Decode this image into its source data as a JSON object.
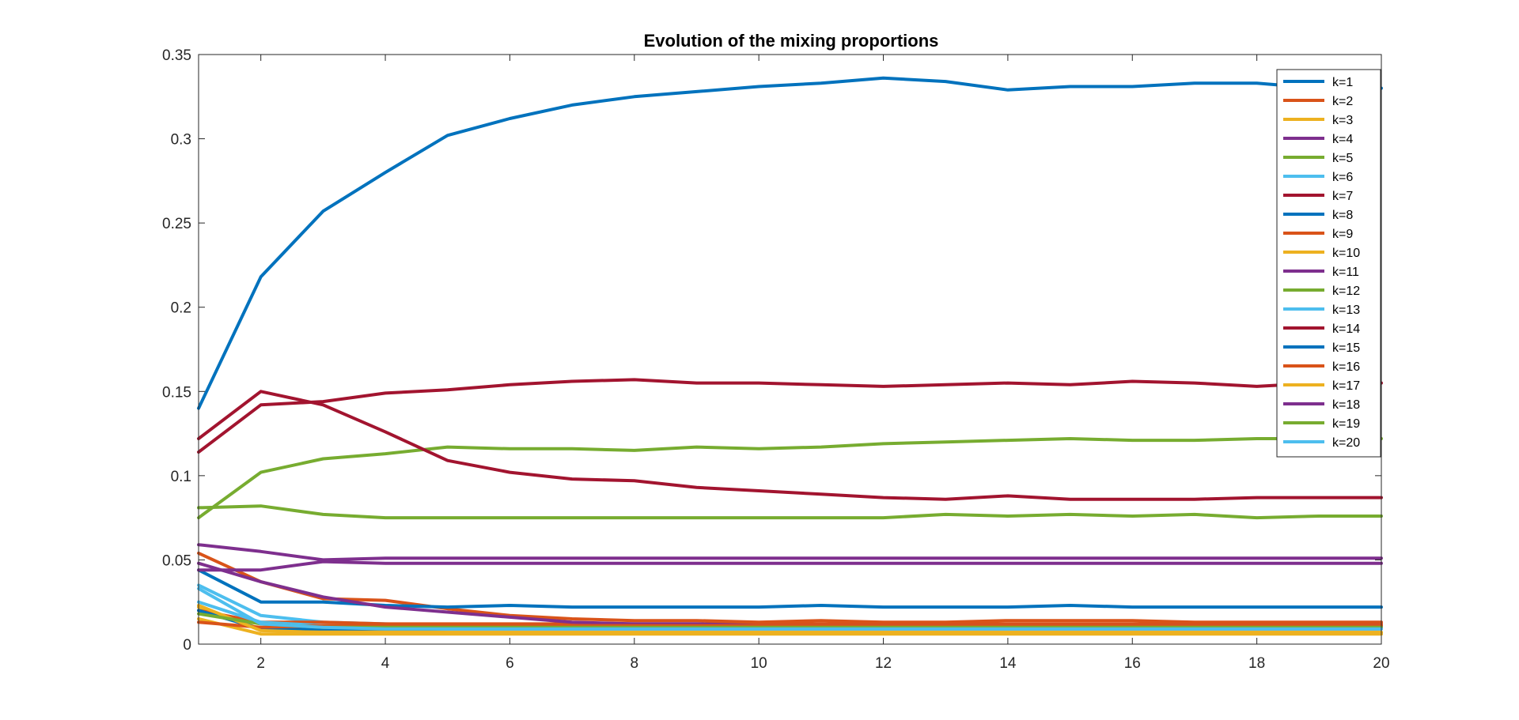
{
  "chart_data": {
    "type": "line",
    "title": "Evolution of the mixing proportions",
    "xlabel": "",
    "ylabel": "",
    "xlim": [
      1,
      20
    ],
    "ylim": [
      0,
      0.35
    ],
    "x_ticks": [
      2,
      4,
      6,
      8,
      10,
      12,
      14,
      16,
      18,
      20
    ],
    "y_ticks": [
      0,
      0.05,
      0.1,
      0.15,
      0.2,
      0.25,
      0.3,
      0.35
    ],
    "y_tick_labels": [
      "0",
      "0.05",
      "0.1",
      "0.15",
      "0.2",
      "0.25",
      "0.3",
      "0.35"
    ],
    "grid": false,
    "legend_position": "top-right",
    "x": [
      1,
      2,
      3,
      4,
      5,
      6,
      7,
      8,
      9,
      10,
      11,
      12,
      13,
      14,
      15,
      16,
      17,
      18,
      19,
      20
    ],
    "series": [
      {
        "name": "k=1",
        "color": "#0072BD",
        "values": [
          0.14,
          0.218,
          0.257,
          0.28,
          0.302,
          0.312,
          0.32,
          0.325,
          0.328,
          0.331,
          0.333,
          0.336,
          0.334,
          0.329,
          0.331,
          0.331,
          0.333,
          0.333,
          0.33,
          0.33
        ]
      },
      {
        "name": "k=2",
        "color": "#D95319",
        "values": [
          0.054,
          0.037,
          0.027,
          0.026,
          0.021,
          0.017,
          0.015,
          0.014,
          0.014,
          0.013,
          0.014,
          0.013,
          0.013,
          0.014,
          0.014,
          0.014,
          0.013,
          0.013,
          0.013,
          0.013
        ]
      },
      {
        "name": "k=3",
        "color": "#EDB120",
        "values": [
          0.022,
          0.009,
          0.008,
          0.008,
          0.007,
          0.007,
          0.007,
          0.007,
          0.007,
          0.007,
          0.007,
          0.007,
          0.007,
          0.007,
          0.007,
          0.007,
          0.007,
          0.007,
          0.007,
          0.007
        ]
      },
      {
        "name": "k=4",
        "color": "#7E2F8E",
        "values": [
          0.059,
          0.055,
          0.05,
          0.051,
          0.051,
          0.051,
          0.051,
          0.051,
          0.051,
          0.051,
          0.051,
          0.051,
          0.051,
          0.051,
          0.051,
          0.051,
          0.051,
          0.051,
          0.051,
          0.051
        ]
      },
      {
        "name": "k=5",
        "color": "#77AC30",
        "values": [
          0.081,
          0.082,
          0.077,
          0.075,
          0.075,
          0.075,
          0.075,
          0.075,
          0.075,
          0.075,
          0.075,
          0.075,
          0.077,
          0.076,
          0.077,
          0.076,
          0.077,
          0.075,
          0.076,
          0.076
        ]
      },
      {
        "name": "k=6",
        "color": "#4DBEEE",
        "values": [
          0.035,
          0.017,
          0.013,
          0.012,
          0.011,
          0.011,
          0.011,
          0.011,
          0.011,
          0.011,
          0.011,
          0.011,
          0.011,
          0.011,
          0.011,
          0.011,
          0.011,
          0.011,
          0.011,
          0.011
        ]
      },
      {
        "name": "k=7",
        "color": "#A2142F",
        "values": [
          0.114,
          0.142,
          0.144,
          0.149,
          0.151,
          0.154,
          0.156,
          0.157,
          0.155,
          0.155,
          0.154,
          0.153,
          0.154,
          0.155,
          0.154,
          0.156,
          0.155,
          0.153,
          0.155,
          0.155
        ]
      },
      {
        "name": "k=8",
        "color": "#0072BD",
        "values": [
          0.044,
          0.025,
          0.025,
          0.023,
          0.022,
          0.023,
          0.022,
          0.022,
          0.022,
          0.022,
          0.023,
          0.022,
          0.022,
          0.022,
          0.023,
          0.022,
          0.022,
          0.022,
          0.022,
          0.022
        ]
      },
      {
        "name": "k=9",
        "color": "#D95319",
        "values": [
          0.02,
          0.013,
          0.013,
          0.012,
          0.012,
          0.012,
          0.012,
          0.012,
          0.012,
          0.012,
          0.012,
          0.012,
          0.012,
          0.012,
          0.012,
          0.012,
          0.012,
          0.012,
          0.012,
          0.012
        ]
      },
      {
        "name": "k=10",
        "color": "#EDB120",
        "values": [
          0.015,
          0.006,
          0.006,
          0.006,
          0.006,
          0.006,
          0.006,
          0.006,
          0.006,
          0.006,
          0.006,
          0.006,
          0.006,
          0.006,
          0.006,
          0.006,
          0.006,
          0.006,
          0.006,
          0.006
        ]
      },
      {
        "name": "k=11",
        "color": "#7E2F8E",
        "values": [
          0.048,
          0.037,
          0.028,
          0.022,
          0.019,
          0.016,
          0.013,
          0.012,
          0.012,
          0.011,
          0.011,
          0.011,
          0.011,
          0.011,
          0.011,
          0.011,
          0.011,
          0.011,
          0.011,
          0.011
        ]
      },
      {
        "name": "k=12",
        "color": "#77AC30",
        "values": [
          0.075,
          0.102,
          0.11,
          0.113,
          0.117,
          0.116,
          0.116,
          0.115,
          0.117,
          0.116,
          0.117,
          0.119,
          0.12,
          0.121,
          0.122,
          0.121,
          0.121,
          0.122,
          0.122,
          0.122
        ]
      },
      {
        "name": "k=13",
        "color": "#4DBEEE",
        "values": [
          0.025,
          0.013,
          0.011,
          0.01,
          0.01,
          0.01,
          0.01,
          0.01,
          0.01,
          0.01,
          0.01,
          0.01,
          0.01,
          0.01,
          0.01,
          0.01,
          0.01,
          0.01,
          0.01,
          0.01
        ]
      },
      {
        "name": "k=14",
        "color": "#A2142F",
        "values": [
          0.122,
          0.15,
          0.142,
          0.126,
          0.109,
          0.102,
          0.098,
          0.097,
          0.093,
          0.091,
          0.089,
          0.087,
          0.086,
          0.088,
          0.086,
          0.086,
          0.086,
          0.087,
          0.087,
          0.087
        ]
      },
      {
        "name": "k=15",
        "color": "#0072BD",
        "values": [
          0.02,
          0.009,
          0.009,
          0.009,
          0.009,
          0.009,
          0.009,
          0.009,
          0.009,
          0.009,
          0.009,
          0.009,
          0.009,
          0.009,
          0.009,
          0.009,
          0.009,
          0.009,
          0.009,
          0.009
        ]
      },
      {
        "name": "k=16",
        "color": "#D95319",
        "values": [
          0.013,
          0.01,
          0.011,
          0.011,
          0.011,
          0.011,
          0.011,
          0.011,
          0.011,
          0.011,
          0.011,
          0.011,
          0.011,
          0.011,
          0.011,
          0.011,
          0.011,
          0.011,
          0.011,
          0.011
        ]
      },
      {
        "name": "k=17",
        "color": "#EDB120",
        "values": [
          0.023,
          0.008,
          0.007,
          0.007,
          0.007,
          0.007,
          0.007,
          0.007,
          0.007,
          0.007,
          0.007,
          0.007,
          0.007,
          0.007,
          0.007,
          0.007,
          0.007,
          0.007,
          0.007,
          0.007
        ]
      },
      {
        "name": "k=18",
        "color": "#7E2F8E",
        "values": [
          0.044,
          0.044,
          0.049,
          0.048,
          0.048,
          0.048,
          0.048,
          0.048,
          0.048,
          0.048,
          0.048,
          0.048,
          0.048,
          0.048,
          0.048,
          0.048,
          0.048,
          0.048,
          0.048,
          0.048
        ]
      },
      {
        "name": "k=19",
        "color": "#77AC30",
        "values": [
          0.018,
          0.012,
          0.01,
          0.01,
          0.01,
          0.01,
          0.01,
          0.01,
          0.01,
          0.01,
          0.01,
          0.01,
          0.01,
          0.01,
          0.01,
          0.01,
          0.01,
          0.01,
          0.01,
          0.01
        ]
      },
      {
        "name": "k=20",
        "color": "#4DBEEE",
        "values": [
          0.033,
          0.012,
          0.01,
          0.009,
          0.009,
          0.009,
          0.009,
          0.009,
          0.009,
          0.009,
          0.009,
          0.009,
          0.009,
          0.009,
          0.009,
          0.009,
          0.009,
          0.009,
          0.009,
          0.009
        ]
      }
    ]
  }
}
